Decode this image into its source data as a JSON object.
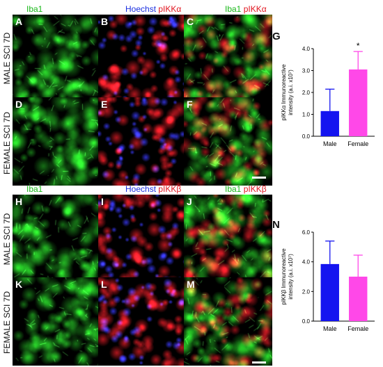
{
  "top": {
    "headers": {
      "col1": {
        "iba1": "Iba1"
      },
      "col2": {
        "hoechst": "Hoechst",
        "marker": "pIKKα"
      },
      "col3": {
        "iba1": "Iba1",
        "marker": "pIKKα"
      }
    },
    "rows": [
      "MALE SCI 7D",
      "FEMALE SCI 7D"
    ],
    "panel_labels": [
      "A",
      "B",
      "C",
      "D",
      "E",
      "F"
    ]
  },
  "bottom": {
    "headers": {
      "col1": {
        "iba1": "Iba1"
      },
      "col2": {
        "hoechst": "Hoechst",
        "marker": "pIKKβ"
      },
      "col3": {
        "iba1": "Iba1",
        "marker": "pIKKβ"
      }
    },
    "rows": [
      "MALE SCI 7D",
      "FEMALE SCI 7D"
    ],
    "panel_labels": [
      "H",
      "I",
      "J",
      "K",
      "L",
      "M"
    ]
  },
  "colors": {
    "green": "#18b818",
    "red": "#e0141e",
    "blue": "#1a2fe0",
    "male": "#1414f0",
    "female": "#ff48e8"
  },
  "chart_data": [
    {
      "panel_label": "G",
      "type": "bar",
      "categories": [
        "Male",
        "Female"
      ],
      "values": [
        1.15,
        3.05
      ],
      "errors": [
        1.0,
        0.82
      ],
      "ylabel_line1": "pIKKα Immunoreactive",
      "ylabel_line2": "intensity (a.i. x10⁷)",
      "ylim": [
        0,
        4.0
      ],
      "yticks": [
        "0.0",
        "1.0",
        "2.0",
        "3.0",
        "4.0"
      ],
      "annotation": "*",
      "colors": [
        "#1414f0",
        "#ff48e8"
      ]
    },
    {
      "panel_label": "N",
      "type": "bar",
      "categories": [
        "Male",
        "Female"
      ],
      "values": [
        3.85,
        3.0
      ],
      "errors": [
        1.55,
        1.45
      ],
      "ylabel_line1": "pIKKβ Immunoreactive",
      "ylabel_line2": "intensity (a.i. x10⁷)",
      "ylim": [
        0,
        6.0
      ],
      "yticks": [
        "0.0",
        "2.0",
        "4.0",
        "6.0"
      ],
      "colors": [
        "#1414f0",
        "#ff48e8"
      ]
    }
  ]
}
